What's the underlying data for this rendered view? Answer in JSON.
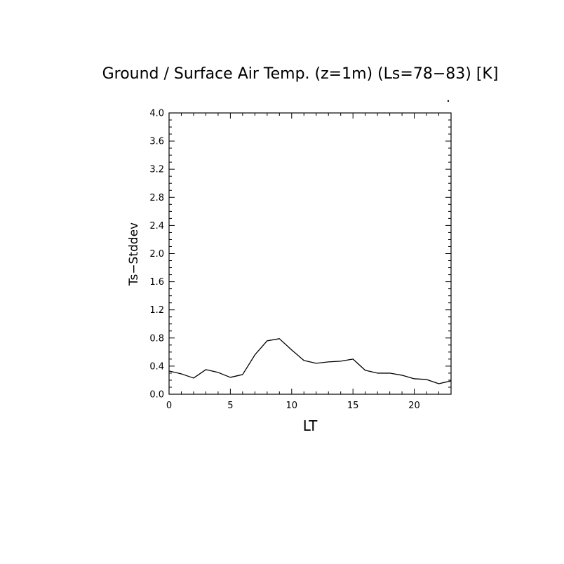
{
  "chart_data": {
    "type": "line",
    "title": "Ground / Surface Air Temp. (z=1m) (Ls=78−83) [K]",
    "xlabel": "LT",
    "ylabel": "Ts−Stddev",
    "xlim": [
      0,
      23
    ],
    "ylim": [
      0.0,
      4.0
    ],
    "x_ticks": [
      0,
      5,
      10,
      15,
      20
    ],
    "x_tick_labels": [
      "0",
      "5",
      "10",
      "15",
      "20"
    ],
    "y_ticks": [
      0.0,
      0.4,
      0.8,
      1.2,
      1.6,
      2.0,
      2.4,
      2.8,
      3.2,
      3.6,
      4.0
    ],
    "y_tick_labels": [
      "0.0",
      "0.4",
      "0.8",
      "1.2",
      "1.6",
      "2.0",
      "2.4",
      "2.8",
      "3.2",
      "3.6",
      "4.0"
    ],
    "grid": false,
    "series": [
      {
        "x": [
          0,
          1,
          2,
          3,
          4,
          5,
          6,
          7,
          8,
          9,
          10,
          11,
          12,
          13,
          14,
          15,
          16,
          17,
          18,
          19,
          20,
          21,
          22,
          23
        ],
        "values": [
          0.33,
          0.29,
          0.23,
          0.35,
          0.31,
          0.24,
          0.28,
          0.56,
          0.76,
          0.79,
          0.63,
          0.48,
          0.44,
          0.46,
          0.47,
          0.5,
          0.34,
          0.3,
          0.3,
          0.27,
          0.22,
          0.21,
          0.15,
          0.19
        ]
      }
    ]
  }
}
